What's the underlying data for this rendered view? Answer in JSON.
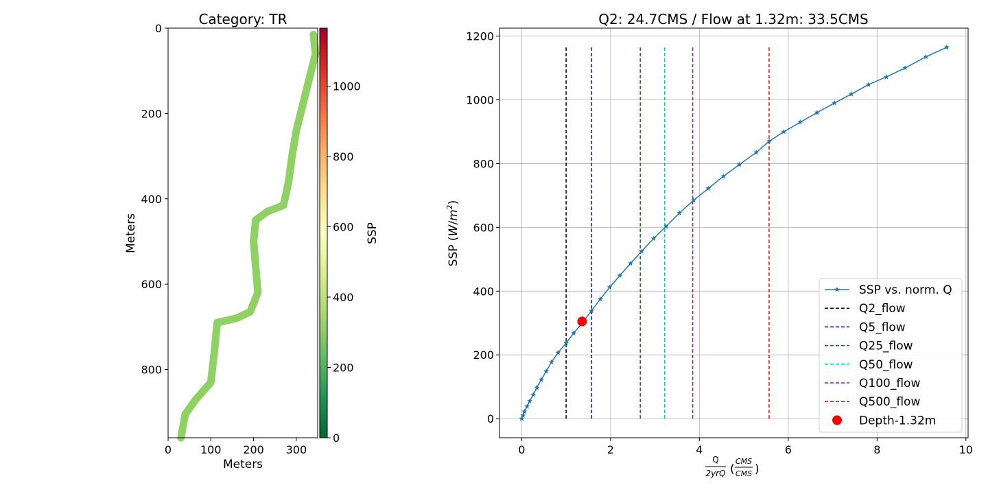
{
  "left_panel": {
    "title": "Category: TR",
    "xlabel": "Meters",
    "ylabel": "Meters",
    "xticks": [
      "0",
      "100",
      "200",
      "300"
    ],
    "yticks": [
      "0",
      "200",
      "400",
      "600",
      "800"
    ],
    "fill_color": "#8fd162"
  },
  "colorbar": {
    "label": "SSP",
    "ticks": [
      "0",
      "200",
      "400",
      "600",
      "800",
      "1000"
    ],
    "colormap": "RdYlGn_r"
  },
  "chart_data": [
    {
      "type": "heatmap",
      "title": "Category: TR",
      "xlabel": "Meters",
      "ylabel": "Meters",
      "xlim": [
        0,
        350
      ],
      "ylim": [
        960,
        0
      ],
      "colorbar_label": "SSP",
      "colorbar_range": [
        0,
        1165
      ],
      "uniform_ssp_value": 305,
      "centerline": [
        [
          340,
          15
        ],
        [
          345,
          60
        ],
        [
          330,
          120
        ],
        [
          315,
          180
        ],
        [
          300,
          240
        ],
        [
          290,
          300
        ],
        [
          282,
          360
        ],
        [
          270,
          415
        ],
        [
          232,
          430
        ],
        [
          205,
          450
        ],
        [
          200,
          500
        ],
        [
          205,
          560
        ],
        [
          210,
          620
        ],
        [
          192,
          665
        ],
        [
          160,
          680
        ],
        [
          115,
          690
        ],
        [
          108,
          760
        ],
        [
          100,
          830
        ],
        [
          65,
          870
        ],
        [
          40,
          905
        ],
        [
          30,
          960
        ]
      ]
    },
    {
      "type": "line",
      "title": "Q2: 24.7CMS / Flow at 1.32m: 33.5CMS",
      "xlabel": "Q / 2yrQ (CMS / CMS)",
      "ylabel": "SSP (W/m2)",
      "xlim": [
        -0.5,
        10.05
      ],
      "ylim": [
        -60,
        1225
      ],
      "xticks": [
        "0",
        "2",
        "4",
        "6",
        "8",
        "10"
      ],
      "yticks": [
        "0",
        "200",
        "400",
        "600",
        "800",
        "1000",
        "1200"
      ],
      "grid": true,
      "legend_position": "lower-right",
      "series": [
        {
          "name": "SSP vs. norm. Q",
          "color": "#1f77b4",
          "marker": "star",
          "x": [
            0.0,
            0.03,
            0.06,
            0.12,
            0.18,
            0.26,
            0.34,
            0.44,
            0.55,
            0.67,
            0.82,
            1.0,
            1.17,
            1.37,
            1.57,
            1.77,
            1.98,
            2.21,
            2.45,
            2.7,
            2.97,
            3.25,
            3.55,
            3.87,
            4.2,
            4.54,
            4.9,
            5.28,
            5.57,
            5.9,
            6.27,
            6.65,
            7.04,
            7.42,
            7.81,
            8.21,
            8.63,
            9.1,
            9.57
          ],
          "y": [
            0,
            10,
            22,
            38,
            55,
            75,
            97,
            122,
            148,
            177,
            207,
            237,
            268,
            302,
            338,
            375,
            412,
            449,
            487,
            525,
            565,
            603,
            645,
            685,
            722,
            760,
            797,
            835,
            870,
            900,
            930,
            960,
            990,
            1018,
            1048,
            1072,
            1100,
            1135,
            1165
          ]
        }
      ],
      "reference_lines": [
        {
          "name": "Q2_flow",
          "x": 1.0,
          "color": "#000000",
          "y_range": [
            0,
            1165
          ]
        },
        {
          "name": "Q5_flow",
          "x": 1.57,
          "color": "#0000ff",
          "y_range": [
            0,
            1165
          ]
        },
        {
          "name": "Q25_flow",
          "x": 2.67,
          "color": "#008000",
          "y_range": [
            0,
            1165
          ]
        },
        {
          "name": "Q50_flow",
          "x": 3.22,
          "color": "#00bfbf",
          "y_range": [
            0,
            1165
          ]
        },
        {
          "name": "Q100_flow",
          "x": 3.85,
          "color": "#bf00bf",
          "y_range": [
            0,
            1165
          ]
        },
        {
          "name": "Q500_flow",
          "x": 5.57,
          "color": "#ff0000",
          "y_range": [
            0,
            1165
          ]
        }
      ],
      "point": {
        "name": "Depth-1.32m",
        "x": 1.36,
        "y": 305,
        "color": "#ff0000"
      }
    }
  ]
}
